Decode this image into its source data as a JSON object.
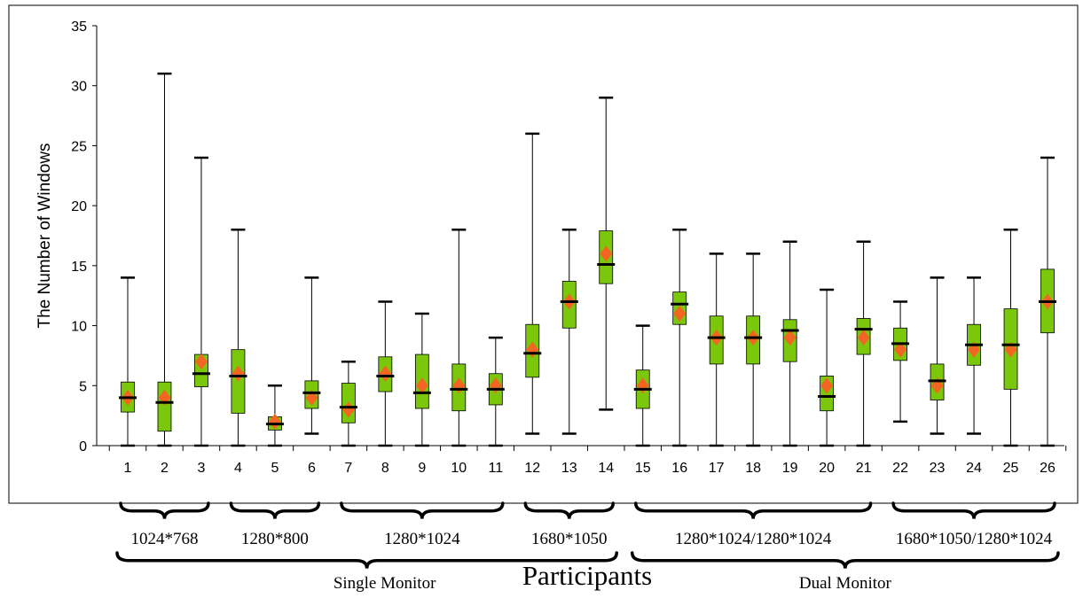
{
  "chart_data": {
    "type": "box",
    "ylabel": "The Number of Windows",
    "xlabel": "Participants",
    "ylim": [
      0,
      35
    ],
    "yticks": [
      0,
      5,
      10,
      15,
      20,
      25,
      30,
      35
    ],
    "colors": {
      "box": "#7ac70c",
      "box_edge": "#000000",
      "mean": "#f26522",
      "median": "#000000"
    },
    "categories": [
      "1",
      "2",
      "3",
      "4",
      "5",
      "6",
      "7",
      "8",
      "9",
      "10",
      "11",
      "12",
      "13",
      "14",
      "15",
      "16",
      "17",
      "18",
      "19",
      "20",
      "21",
      "22",
      "23",
      "24",
      "25",
      "26"
    ],
    "boxes": [
      {
        "min": 0,
        "q1": 2.8,
        "median": 4,
        "q3": 5.3,
        "max": 14,
        "mean": 4
      },
      {
        "min": 0,
        "q1": 1.2,
        "median": 3.6,
        "q3": 5.3,
        "max": 31,
        "mean": 4
      },
      {
        "min": 0,
        "q1": 4.9,
        "median": 6,
        "q3": 7.6,
        "max": 24,
        "mean": 7
      },
      {
        "min": 0,
        "q1": 2.7,
        "median": 5.8,
        "q3": 8,
        "max": 18,
        "mean": 6
      },
      {
        "min": 0,
        "q1": 1.3,
        "median": 1.8,
        "q3": 2.4,
        "max": 5,
        "mean": 2
      },
      {
        "min": 1,
        "q1": 3.1,
        "median": 4.4,
        "q3": 5.4,
        "max": 14,
        "mean": 4
      },
      {
        "min": 0,
        "q1": 1.9,
        "median": 3.2,
        "q3": 5.2,
        "max": 7,
        "mean": 3
      },
      {
        "min": 0,
        "q1": 4.5,
        "median": 5.8,
        "q3": 7.4,
        "max": 12,
        "mean": 6
      },
      {
        "min": 0,
        "q1": 3.1,
        "median": 4.4,
        "q3": 7.6,
        "max": 11,
        "mean": 5
      },
      {
        "min": 0,
        "q1": 2.9,
        "median": 4.7,
        "q3": 6.8,
        "max": 18,
        "mean": 5
      },
      {
        "min": 0,
        "q1": 3.4,
        "median": 4.7,
        "q3": 6,
        "max": 9,
        "mean": 5
      },
      {
        "min": 1,
        "q1": 5.7,
        "median": 7.7,
        "q3": 10.1,
        "max": 26,
        "mean": 8
      },
      {
        "min": 1,
        "q1": 9.8,
        "median": 12,
        "q3": 13.7,
        "max": 18,
        "mean": 12
      },
      {
        "min": 3,
        "q1": 13.5,
        "median": 15.1,
        "q3": 17.9,
        "max": 29,
        "mean": 16
      },
      {
        "min": 0,
        "q1": 3.1,
        "median": 4.7,
        "q3": 6.3,
        "max": 10,
        "mean": 5
      },
      {
        "min": 0,
        "q1": 10.1,
        "median": 11.8,
        "q3": 12.8,
        "max": 18,
        "mean": 11
      },
      {
        "min": 0,
        "q1": 6.8,
        "median": 9,
        "q3": 10.8,
        "max": 16,
        "mean": 9
      },
      {
        "min": 0,
        "q1": 6.8,
        "median": 9,
        "q3": 10.8,
        "max": 16,
        "mean": 9
      },
      {
        "min": 0,
        "q1": 7,
        "median": 9.6,
        "q3": 10.5,
        "max": 17,
        "mean": 9
      },
      {
        "min": 0,
        "q1": 2.9,
        "median": 4.1,
        "q3": 5.8,
        "max": 13,
        "mean": 5
      },
      {
        "min": 0,
        "q1": 7.6,
        "median": 9.7,
        "q3": 10.6,
        "max": 17,
        "mean": 9
      },
      {
        "min": 2,
        "q1": 7.1,
        "median": 8.5,
        "q3": 9.8,
        "max": 12,
        "mean": 8
      },
      {
        "min": 1,
        "q1": 3.8,
        "median": 5.4,
        "q3": 6.8,
        "max": 14,
        "mean": 5
      },
      {
        "min": 1,
        "q1": 6.7,
        "median": 8.4,
        "q3": 10.1,
        "max": 14,
        "mean": 8
      },
      {
        "min": 0,
        "q1": 4.7,
        "median": 8.4,
        "q3": 11.4,
        "max": 18,
        "mean": 8
      },
      {
        "min": 0,
        "q1": 9.4,
        "median": 12,
        "q3": 14.7,
        "max": 24,
        "mean": 12
      }
    ],
    "resolution_groups": [
      {
        "label": "1024*768",
        "from": 1,
        "to": 3
      },
      {
        "label": "1280*800",
        "from": 4,
        "to": 6
      },
      {
        "label": "1280*1024",
        "from": 7,
        "to": 11
      },
      {
        "label": "1680*1050",
        "from": 12,
        "to": 14
      },
      {
        "label": "1280*1024/1280*1024",
        "from": 15,
        "to": 21
      },
      {
        "label": "1680*1050/1280*1024",
        "from": 22,
        "to": 26
      }
    ],
    "monitor_groups": [
      {
        "label": "Single Monitor",
        "from": 1,
        "to": 14
      },
      {
        "label": "Dual Monitor",
        "from": 15,
        "to": 26
      }
    ]
  }
}
